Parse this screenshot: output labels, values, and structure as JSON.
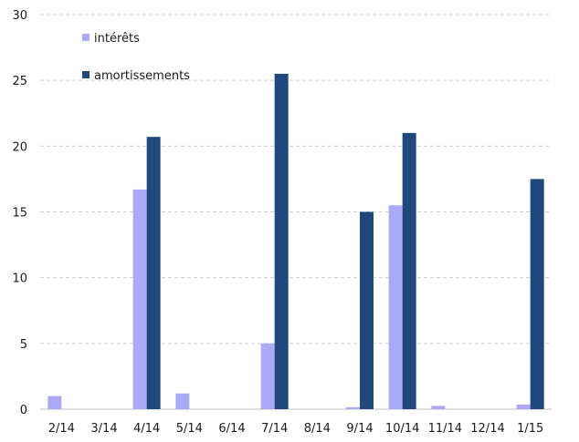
{
  "chart_data": {
    "type": "bar",
    "categories": [
      "2/14",
      "3/14",
      "4/14",
      "5/14",
      "6/14",
      "7/14",
      "8/14",
      "9/14",
      "10/14",
      "11/14",
      "12/14",
      "1/15"
    ],
    "series": [
      {
        "name": "intérêts",
        "color": "#aaaaf6",
        "values": [
          1.0,
          0,
          16.7,
          1.2,
          0,
          5.0,
          0,
          0.15,
          15.5,
          0.25,
          0,
          0.35
        ]
      },
      {
        "name": "amortissements",
        "color": "#1f497d",
        "values": [
          0,
          0,
          20.7,
          0,
          0,
          25.5,
          0,
          15.0,
          21.0,
          0,
          0,
          17.5
        ]
      }
    ],
    "ylim": [
      0,
      30
    ],
    "yticks": [
      0,
      5,
      10,
      15,
      20,
      25,
      30
    ],
    "grid": true,
    "gridColor": "#d0d0d0",
    "legend": "top-left",
    "title": "",
    "xlabel": "",
    "ylabel": ""
  }
}
